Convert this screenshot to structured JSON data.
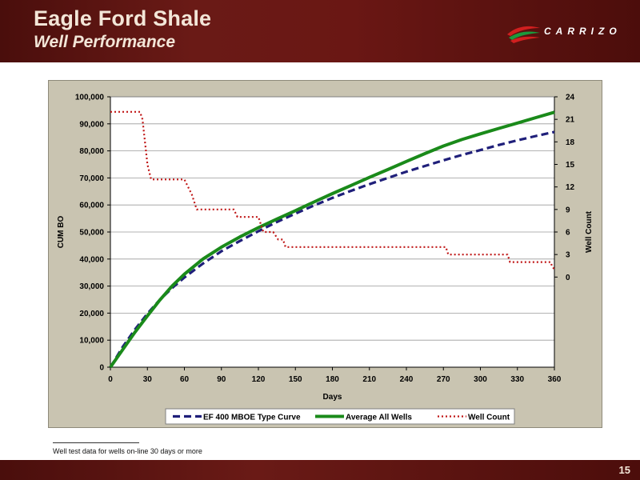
{
  "slide": {
    "title": "Eagle Ford Shale",
    "subtitle": "Well Performance",
    "logo_text": "CARRIZO",
    "footnote": "Well test data for wells on-line 30 days or more",
    "page_number": "15"
  },
  "colors": {
    "header_bg": "#5e1411",
    "type_curve": "#1f1f7a",
    "average": "#1a8a1a",
    "well_count": "#c01818",
    "panel_bg": "#c9c4b1",
    "plot_bg": "#ffffff"
  },
  "chart_data": {
    "type": "line",
    "xlabel": "Days",
    "ylabel": "CUM BO",
    "y2label": "Well Count",
    "xlim": [
      0,
      360
    ],
    "ylim": [
      0,
      100000
    ],
    "y2lim": [
      -12,
      24
    ],
    "x_ticks": [
      0,
      30,
      60,
      90,
      120,
      150,
      180,
      210,
      240,
      270,
      300,
      330,
      360
    ],
    "y_ticks": [
      0,
      10000,
      20000,
      30000,
      40000,
      50000,
      60000,
      70000,
      80000,
      90000,
      100000
    ],
    "y_tick_labels": [
      "0",
      "10,000",
      "20,000",
      "30,000",
      "40,000",
      "50,000",
      "60,000",
      "70,000",
      "80,000",
      "90,000",
      "100,000"
    ],
    "y2_ticks": [
      0,
      3,
      6,
      9,
      12,
      15,
      18,
      21,
      24
    ],
    "grid": true,
    "legend_position": "bottom",
    "series": [
      {
        "name": "EF 400 MBOE Type Curve",
        "axis": "left",
        "style": "dashed",
        "x": [
          0,
          10,
          20,
          30,
          40,
          50,
          60,
          75,
          90,
          105,
          120,
          135,
          150,
          165,
          180,
          195,
          210,
          225,
          240,
          255,
          270,
          285,
          300,
          315,
          330,
          345,
          360
        ],
        "y": [
          0,
          7500,
          14000,
          19800,
          24900,
          29300,
          33200,
          38300,
          42900,
          46700,
          50300,
          53700,
          56800,
          59800,
          62600,
          65200,
          67700,
          70000,
          72300,
          74400,
          76500,
          78500,
          80300,
          82200,
          83900,
          85500,
          87000
        ]
      },
      {
        "name": "Average All Wells",
        "axis": "left",
        "style": "solid",
        "x": [
          0,
          10,
          20,
          30,
          40,
          50,
          60,
          75,
          90,
          105,
          120,
          135,
          150,
          165,
          180,
          195,
          210,
          225,
          240,
          255,
          270,
          285,
          300,
          315,
          330,
          345,
          360
        ],
        "y": [
          0,
          6500,
          13000,
          19000,
          24800,
          30000,
          34400,
          40000,
          44400,
          48200,
          51600,
          54800,
          57900,
          61100,
          64200,
          67200,
          70200,
          73100,
          76100,
          79000,
          81800,
          84200,
          86300,
          88300,
          90300,
          92300,
          94300
        ]
      },
      {
        "name": "Well Count",
        "axis": "right",
        "style": "dotted",
        "x": [
          0,
          24,
          26,
          28,
          30,
          33,
          60,
          63,
          66,
          68,
          70,
          100,
          103,
          120,
          124,
          127,
          132,
          136,
          140,
          142,
          272,
          274,
          322,
          324,
          357,
          358,
          360
        ],
        "y": [
          22,
          22,
          21,
          18,
          15,
          13,
          13,
          12,
          11,
          10,
          9,
          9,
          8,
          8,
          6,
          6,
          6,
          5,
          5,
          4,
          4,
          3,
          3,
          2,
          2,
          1.5,
          1
        ]
      }
    ]
  }
}
